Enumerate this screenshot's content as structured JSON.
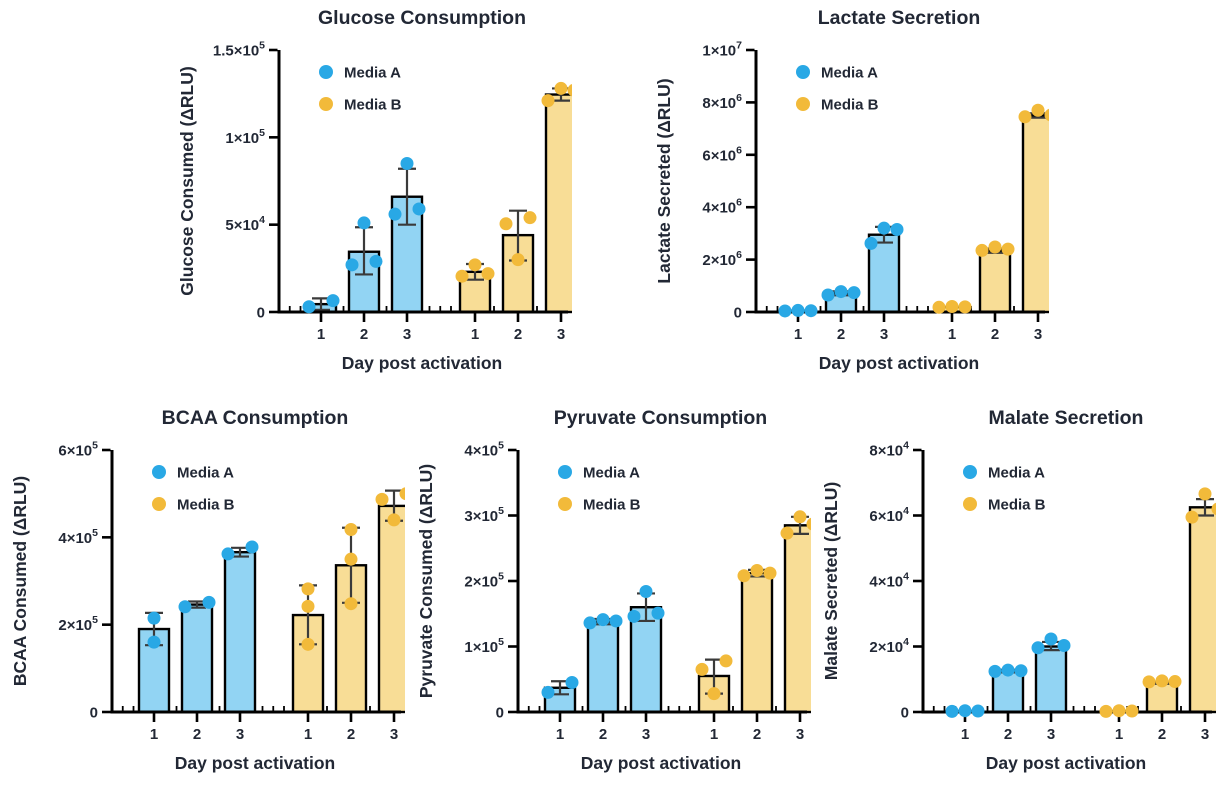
{
  "palette": {
    "media_a": {
      "fill": "#92D4F3",
      "dot": "#29A8E5"
    },
    "media_b": {
      "fill": "#F8DD96",
      "dot": "#F2BA3A"
    },
    "text": "#222835",
    "axis": "#000000",
    "error_bar": "#3A3A3A",
    "background": "#FFFFFF"
  },
  "legend": {
    "items": [
      "Media A",
      "Media B"
    ]
  },
  "chart_data": [
    {
      "type": "bar",
      "title": "Glucose Consumption",
      "xlabel": "Day post activation",
      "ylabel": "Glucose Consumed (ΔRLU)",
      "ymax": 150000,
      "ylim": [
        0,
        150000
      ],
      "grid": false,
      "legend_position": "top-left",
      "categories": [
        "1",
        "2",
        "3"
      ],
      "yticks": [
        {
          "v": 0,
          "m": "0",
          "e": null
        },
        {
          "v": 50000,
          "m": "5×10",
          "e": "4"
        },
        {
          "v": 100000,
          "m": "1×10",
          "e": "5"
        },
        {
          "v": 150000,
          "m": "1.5×10",
          "e": "5"
        }
      ],
      "series": [
        {
          "name": "Media A",
          "color_key": "media_a",
          "bars": [
            {
              "mean": 4500,
              "lo": 1200,
              "hi": 7800,
              "points": [
                3000,
                6500
              ]
            },
            {
              "mean": 34500,
              "lo": 21500,
              "hi": 48500,
              "points": [
                27000,
                29000,
                51000
              ]
            },
            {
              "mean": 66000,
              "lo": 50000,
              "hi": 82000,
              "points": [
                56000,
                59000,
                85000
              ]
            }
          ]
        },
        {
          "name": "Media B",
          "color_key": "media_b",
          "bars": [
            {
              "mean": 23000,
              "lo": 18500,
              "hi": 27500,
              "points": [
                20500,
                22000,
                27000
              ]
            },
            {
              "mean": 44000,
              "lo": 29500,
              "hi": 58000,
              "points": [
                30000,
                50500,
                54000
              ]
            },
            {
              "mean": 124500,
              "lo": 121000,
              "hi": 128000,
              "points": [
                121000,
                127000,
                128000
              ]
            }
          ]
        }
      ]
    },
    {
      "type": "bar",
      "title": "Lactate Secretion",
      "xlabel": "Day post activation",
      "ylabel": "Lactate Secreted (ΔRLU)",
      "ymax": 10000000,
      "ylim": [
        0,
        10000000
      ],
      "grid": false,
      "legend_position": "top-left",
      "categories": [
        "1",
        "2",
        "3"
      ],
      "yticks": [
        {
          "v": 0,
          "m": "0",
          "e": null
        },
        {
          "v": 2000000,
          "m": "2×10",
          "e": "6"
        },
        {
          "v": 4000000,
          "m": "4×10",
          "e": "6"
        },
        {
          "v": 6000000,
          "m": "6×10",
          "e": "6"
        },
        {
          "v": 8000000,
          "m": "8×10",
          "e": "6"
        },
        {
          "v": 10000000,
          "m": "1×10",
          "e": "7"
        }
      ],
      "series": [
        {
          "name": "Media A",
          "color_key": "media_a",
          "bars": [
            {
              "mean": 50000,
              "lo": 50000,
              "hi": 50000,
              "points": [
                40000,
                50000,
                60000
              ]
            },
            {
              "mean": 715000,
              "lo": 640000,
              "hi": 790000,
              "points": [
                650000,
                740000,
                780000
              ]
            },
            {
              "mean": 2950000,
              "lo": 2650000,
              "hi": 3250000,
              "points": [
                2620000,
                3150000,
                3200000
              ]
            }
          ]
        },
        {
          "name": "Media B",
          "color_key": "media_b",
          "bars": [
            {
              "mean": 190000,
              "lo": 190000,
              "hi": 190000,
              "points": [
                180000,
                195000,
                210000
              ]
            },
            {
              "mean": 2340000,
              "lo": 2260000,
              "hi": 2420000,
              "points": [
                2350000,
                2400000,
                2480000
              ]
            },
            {
              "mean": 7500000,
              "lo": 7420000,
              "hi": 7580000,
              "points": [
                7450000,
                7520000,
                7700000
              ]
            }
          ]
        }
      ]
    },
    {
      "type": "bar",
      "title": "BCAA Consumption",
      "xlabel": "Day post activation",
      "ylabel": "BCAA Consumed (ΔRLU)",
      "ymax": 600000,
      "ylim": [
        0,
        600000
      ],
      "grid": false,
      "legend_position": "top-left",
      "categories": [
        "1",
        "2",
        "3"
      ],
      "yticks": [
        {
          "v": 0,
          "m": "0",
          "e": null
        },
        {
          "v": 200000,
          "m": "2×10",
          "e": "5"
        },
        {
          "v": 400000,
          "m": "4×10",
          "e": "5"
        },
        {
          "v": 600000,
          "m": "6×10",
          "e": "5"
        }
      ],
      "series": [
        {
          "name": "Media A",
          "color_key": "media_a",
          "bars": [
            {
              "mean": 190000,
              "lo": 153000,
              "hi": 227000,
              "points": [
                160000,
                215000
              ]
            },
            {
              "mean": 246000,
              "lo": 239000,
              "hi": 253000,
              "points": [
                241000,
                251000
              ]
            },
            {
              "mean": 366000,
              "lo": 356000,
              "hi": 376000,
              "points": [
                362000,
                378000
              ]
            }
          ]
        },
        {
          "name": "Media B",
          "color_key": "media_b",
          "bars": [
            {
              "mean": 222000,
              "lo": 155000,
              "hi": 290000,
              "points": [
                155000,
                242000,
                282000
              ]
            },
            {
              "mean": 336000,
              "lo": 250000,
              "hi": 422000,
              "points": [
                248000,
                350000,
                418000
              ]
            },
            {
              "mean": 472000,
              "lo": 438000,
              "hi": 507000,
              "points": [
                440000,
                487000,
                500000
              ]
            }
          ]
        }
      ]
    },
    {
      "type": "bar",
      "title": "Pyruvate Consumption",
      "xlabel": "Day post activation",
      "ylabel": "Pyruvate Consumed (ΔRLU)",
      "ymax": 400000,
      "ylim": [
        0,
        400000
      ],
      "grid": false,
      "legend_position": "top-left",
      "categories": [
        "1",
        "2",
        "3"
      ],
      "yticks": [
        {
          "v": 0,
          "m": "0",
          "e": null
        },
        {
          "v": 100000,
          "m": "1×10",
          "e": "5"
        },
        {
          "v": 200000,
          "m": "2×10",
          "e": "5"
        },
        {
          "v": 300000,
          "m": "3×10",
          "e": "5"
        },
        {
          "v": 400000,
          "m": "4×10",
          "e": "5"
        }
      ],
      "series": [
        {
          "name": "Media A",
          "color_key": "media_a",
          "bars": [
            {
              "mean": 37000,
              "lo": 27000,
              "hi": 47000,
              "points": [
                30000,
                45000
              ]
            },
            {
              "mean": 138000,
              "lo": 134000,
              "hi": 142000,
              "points": [
                136000,
                139000,
                141000
              ]
            },
            {
              "mean": 160000,
              "lo": 139000,
              "hi": 181000,
              "points": [
                146000,
                151000,
                184000
              ]
            }
          ]
        },
        {
          "name": "Media B",
          "color_key": "media_b",
          "bars": [
            {
              "mean": 55000,
              "lo": 28000,
              "hi": 80000,
              "points": [
                28000,
                65000,
                78000
              ]
            },
            {
              "mean": 212000,
              "lo": 207000,
              "hi": 217000,
              "points": [
                208000,
                212000,
                216000
              ]
            },
            {
              "mean": 285000,
              "lo": 272000,
              "hi": 298000,
              "points": [
                273000,
                287000,
                298000
              ]
            }
          ]
        }
      ]
    },
    {
      "type": "bar",
      "title": "Malate Secretion",
      "xlabel": "Day post activation",
      "ylabel": "Malate Secreted (ΔRLU)",
      "ymax": 80000,
      "ylim": [
        0,
        80000
      ],
      "grid": false,
      "legend_position": "top-left",
      "categories": [
        "1",
        "2",
        "3"
      ],
      "yticks": [
        {
          "v": 0,
          "m": "0",
          "e": null
        },
        {
          "v": 20000,
          "m": "2×10",
          "e": "4"
        },
        {
          "v": 40000,
          "m": "4×10",
          "e": "4"
        },
        {
          "v": 60000,
          "m": "6×10",
          "e": "4"
        },
        {
          "v": 80000,
          "m": "8×10",
          "e": "4"
        }
      ],
      "series": [
        {
          "name": "Media A",
          "color_key": "media_a",
          "bars": [
            {
              "mean": 300,
              "lo": 300,
              "hi": 300,
              "points": [
                200,
                300,
                400
              ]
            },
            {
              "mean": 12500,
              "lo": 12100,
              "hi": 12900,
              "points": [
                12400,
                12600,
                12800
              ]
            },
            {
              "mean": 20000,
              "lo": 18900,
              "hi": 21400,
              "points": [
                19600,
                20300,
                22300
              ]
            }
          ]
        },
        {
          "name": "Media B",
          "color_key": "media_b",
          "bars": [
            {
              "mean": 300,
              "lo": 300,
              "hi": 300,
              "points": [
                200,
                300,
                400
              ]
            },
            {
              "mean": 8900,
              "lo": 8600,
              "hi": 9200,
              "points": [
                9200,
                9300,
                9500
              ]
            },
            {
              "mean": 62500,
              "lo": 60000,
              "hi": 65000,
              "points": [
                59500,
                62000,
                66600
              ]
            }
          ]
        }
      ]
    }
  ]
}
